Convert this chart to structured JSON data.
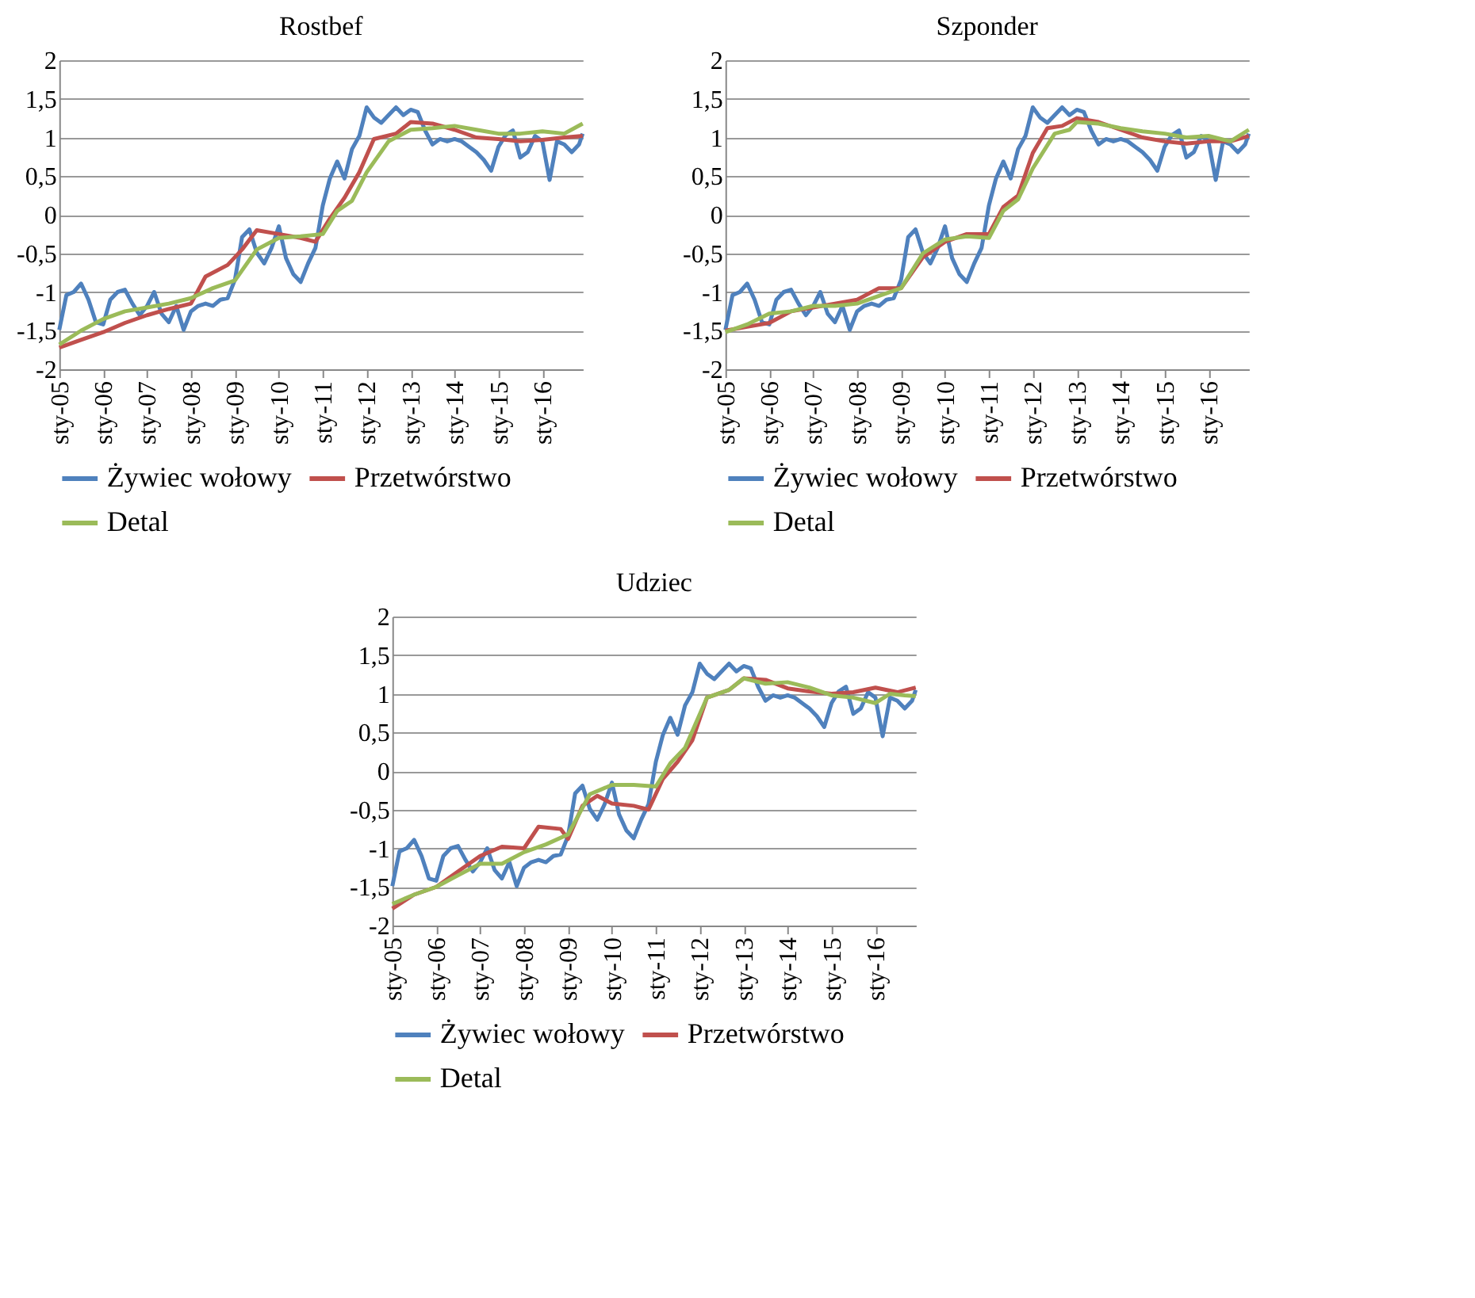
{
  "chart_data": [
    {
      "type": "line",
      "title": "Rostbef",
      "xlim": [
        "2005-01",
        "2016-12"
      ],
      "ylim": [
        -2,
        2
      ],
      "grid": "y",
      "legend": "bottom",
      "xticks": [
        {
          "value": "2005-01",
          "label": "sty-05"
        },
        {
          "value": "2006-01",
          "label": "sty-06"
        },
        {
          "value": "2007-01",
          "label": "sty-07"
        },
        {
          "value": "2008-01",
          "label": "sty-08"
        },
        {
          "value": "2009-01",
          "label": "sty-09"
        },
        {
          "value": "2010-01",
          "label": "sty-10"
        },
        {
          "value": "2011-01",
          "label": "sty-11"
        },
        {
          "value": "2012-01",
          "label": "sty-12"
        },
        {
          "value": "2013-01",
          "label": "sty-13"
        },
        {
          "value": "2014-01",
          "label": "sty-14"
        },
        {
          "value": "2015-01",
          "label": "sty-15"
        },
        {
          "value": "2016-01",
          "label": "sty-16"
        }
      ],
      "yticks": [
        -2,
        {
          "value": -1.5,
          "label": "-1,5"
        },
        -1,
        {
          "value": -0.5,
          "label": "-0,5"
        },
        0,
        {
          "value": 0.5,
          "label": "0,5"
        },
        1,
        {
          "value": 1.5,
          "label": "1,5"
        },
        2
      ],
      "series": [
        {
          "name": "Żywiec wołowy",
          "color": "#4f81bd",
          "x": [
            "2005-01",
            "2005-03",
            "2005-05",
            "2005-07",
            "2005-09",
            "2005-11",
            "2006-01",
            "2006-03",
            "2006-05",
            "2006-07",
            "2006-09",
            "2006-11",
            "2007-01",
            "2007-03",
            "2007-05",
            "2007-07",
            "2007-09",
            "2007-11",
            "2008-01",
            "2008-03",
            "2008-05",
            "2008-07",
            "2008-09",
            "2008-11",
            "2009-01",
            "2009-03",
            "2009-05",
            "2009-07",
            "2009-09",
            "2009-11",
            "2010-01",
            "2010-03",
            "2010-05",
            "2010-07",
            "2010-09",
            "2010-11",
            "2011-01",
            "2011-03",
            "2011-05",
            "2011-07",
            "2011-09",
            "2011-11",
            "2012-01",
            "2012-03",
            "2012-05",
            "2012-07",
            "2012-09",
            "2012-11",
            "2013-01",
            "2013-03",
            "2013-05",
            "2013-07",
            "2013-09",
            "2013-11",
            "2014-01",
            "2014-03",
            "2014-05",
            "2014-07",
            "2014-09",
            "2014-11",
            "2015-01",
            "2015-03",
            "2015-05",
            "2015-07",
            "2015-09",
            "2015-11",
            "2016-01",
            "2016-03",
            "2016-05",
            "2016-07",
            "2016-09",
            "2016-11",
            "2016-12"
          ],
          "values": [
            -1.49,
            -1.04,
            -1.0,
            -0.89,
            -1.1,
            -1.39,
            -1.42,
            -1.1,
            -1.0,
            -0.97,
            -1.15,
            -1.3,
            -1.18,
            -1.0,
            -1.28,
            -1.39,
            -1.18,
            -1.49,
            -1.25,
            -1.18,
            -1.15,
            -1.18,
            -1.1,
            -1.08,
            -0.84,
            -0.29,
            -0.19,
            -0.49,
            -0.63,
            -0.43,
            -0.15,
            -0.56,
            -0.77,
            -0.87,
            -0.63,
            -0.43,
            0.12,
            0.47,
            0.69,
            0.47,
            0.85,
            1.02,
            1.39,
            1.26,
            1.19,
            1.29,
            1.39,
            1.29,
            1.36,
            1.33,
            1.09,
            0.91,
            0.98,
            0.95,
            0.98,
            0.95,
            0.88,
            0.81,
            0.71,
            0.57,
            0.88,
            1.03,
            1.09,
            0.74,
            0.81,
            1.02,
            0.95,
            0.45,
            0.95,
            0.91,
            0.81,
            0.91,
            1.05
          ]
        },
        {
          "name": "Przetwórstwo",
          "color": "#c0504d",
          "x": [
            "2005-01",
            "2005-07",
            "2006-01",
            "2006-07",
            "2007-01",
            "2007-07",
            "2008-01",
            "2008-05",
            "2008-11",
            "2009-03",
            "2009-07",
            "2010-01",
            "2010-07",
            "2010-11",
            "2011-03",
            "2011-07",
            "2011-11",
            "2012-03",
            "2012-09",
            "2013-01",
            "2013-07",
            "2014-01",
            "2014-07",
            "2015-01",
            "2015-07",
            "2016-01",
            "2016-07",
            "2016-12"
          ],
          "values": [
            -1.72,
            -1.62,
            -1.52,
            -1.4,
            -1.3,
            -1.22,
            -1.15,
            -0.8,
            -0.65,
            -0.45,
            -0.2,
            -0.25,
            -0.3,
            -0.35,
            -0.05,
            0.22,
            0.55,
            0.98,
            1.05,
            1.2,
            1.18,
            1.1,
            1.0,
            0.98,
            0.95,
            0.97,
            1.0,
            1.02
          ]
        },
        {
          "name": "Detal",
          "color": "#9bbb59",
          "x": [
            "2005-01",
            "2005-07",
            "2006-01",
            "2006-07",
            "2007-01",
            "2007-07",
            "2008-01",
            "2008-07",
            "2009-01",
            "2009-07",
            "2010-01",
            "2010-07",
            "2011-01",
            "2011-05",
            "2011-09",
            "2012-01",
            "2012-07",
            "2013-01",
            "2013-07",
            "2014-01",
            "2014-07",
            "2015-01",
            "2015-07",
            "2016-01",
            "2016-07",
            "2016-12"
          ],
          "values": [
            -1.68,
            -1.5,
            -1.35,
            -1.25,
            -1.2,
            -1.15,
            -1.08,
            -0.95,
            -0.85,
            -0.45,
            -0.3,
            -0.28,
            -0.25,
            0.05,
            0.18,
            0.55,
            0.95,
            1.1,
            1.12,
            1.15,
            1.1,
            1.05,
            1.05,
            1.08,
            1.05,
            1.18
          ]
        }
      ]
    },
    {
      "type": "line",
      "title": "Szponder",
      "xlim": [
        "2005-01",
        "2016-12"
      ],
      "ylim": [
        -2,
        2
      ],
      "grid": "y",
      "legend": "bottom",
      "xticks": [
        {
          "value": "2005-01",
          "label": "sty-05"
        },
        {
          "value": "2006-01",
          "label": "sty-06"
        },
        {
          "value": "2007-01",
          "label": "sty-07"
        },
        {
          "value": "2008-01",
          "label": "sty-08"
        },
        {
          "value": "2009-01",
          "label": "sty-09"
        },
        {
          "value": "2010-01",
          "label": "sty-10"
        },
        {
          "value": "2011-01",
          "label": "sty-11"
        },
        {
          "value": "2012-01",
          "label": "sty-12"
        },
        {
          "value": "2013-01",
          "label": "sty-13"
        },
        {
          "value": "2014-01",
          "label": "sty-14"
        },
        {
          "value": "2015-01",
          "label": "sty-15"
        },
        {
          "value": "2016-01",
          "label": "sty-16"
        }
      ],
      "yticks": [
        -2,
        {
          "value": -1.5,
          "label": "-1,5"
        },
        -1,
        {
          "value": -0.5,
          "label": "-0,5"
        },
        0,
        {
          "value": 0.5,
          "label": "0,5"
        },
        1,
        {
          "value": 1.5,
          "label": "1,5"
        },
        2
      ],
      "series": [
        {
          "name": "Żywiec wołowy",
          "color": "#4f81bd",
          "x": [
            "2005-01",
            "2005-03",
            "2005-05",
            "2005-07",
            "2005-09",
            "2005-11",
            "2006-01",
            "2006-03",
            "2006-05",
            "2006-07",
            "2006-09",
            "2006-11",
            "2007-01",
            "2007-03",
            "2007-05",
            "2007-07",
            "2007-09",
            "2007-11",
            "2008-01",
            "2008-03",
            "2008-05",
            "2008-07",
            "2008-09",
            "2008-11",
            "2009-01",
            "2009-03",
            "2009-05",
            "2009-07",
            "2009-09",
            "2009-11",
            "2010-01",
            "2010-03",
            "2010-05",
            "2010-07",
            "2010-09",
            "2010-11",
            "2011-01",
            "2011-03",
            "2011-05",
            "2011-07",
            "2011-09",
            "2011-11",
            "2012-01",
            "2012-03",
            "2012-05",
            "2012-07",
            "2012-09",
            "2012-11",
            "2013-01",
            "2013-03",
            "2013-05",
            "2013-07",
            "2013-09",
            "2013-11",
            "2014-01",
            "2014-03",
            "2014-05",
            "2014-07",
            "2014-09",
            "2014-11",
            "2015-01",
            "2015-03",
            "2015-05",
            "2015-07",
            "2015-09",
            "2015-11",
            "2016-01",
            "2016-03",
            "2016-05",
            "2016-07",
            "2016-09",
            "2016-11",
            "2016-12"
          ],
          "values": [
            -1.49,
            -1.04,
            -1.0,
            -0.89,
            -1.1,
            -1.39,
            -1.42,
            -1.1,
            -1.0,
            -0.97,
            -1.15,
            -1.3,
            -1.18,
            -1.0,
            -1.28,
            -1.39,
            -1.18,
            -1.49,
            -1.25,
            -1.18,
            -1.15,
            -1.18,
            -1.1,
            -1.08,
            -0.84,
            -0.29,
            -0.19,
            -0.49,
            -0.63,
            -0.43,
            -0.15,
            -0.56,
            -0.77,
            -0.87,
            -0.63,
            -0.43,
            0.12,
            0.47,
            0.69,
            0.47,
            0.85,
            1.02,
            1.39,
            1.26,
            1.19,
            1.29,
            1.39,
            1.29,
            1.36,
            1.33,
            1.09,
            0.91,
            0.98,
            0.95,
            0.98,
            0.95,
            0.88,
            0.81,
            0.71,
            0.57,
            0.88,
            1.03,
            1.09,
            0.74,
            0.81,
            1.02,
            0.95,
            0.45,
            0.95,
            0.91,
            0.81,
            0.91,
            1.05
          ]
        },
        {
          "name": "Przetwórstwo",
          "color": "#c0504d",
          "x": [
            "2005-01",
            "2005-07",
            "2006-01",
            "2006-07",
            "2007-01",
            "2007-07",
            "2008-01",
            "2008-07",
            "2009-01",
            "2009-07",
            "2010-01",
            "2010-07",
            "2011-01",
            "2011-05",
            "2011-09",
            "2012-01",
            "2012-05",
            "2012-09",
            "2013-01",
            "2013-07",
            "2014-01",
            "2014-07",
            "2015-01",
            "2015-07",
            "2016-01",
            "2016-07",
            "2016-12"
          ],
          "values": [
            -1.5,
            -1.45,
            -1.4,
            -1.25,
            -1.2,
            -1.15,
            -1.1,
            -0.95,
            -0.95,
            -0.55,
            -0.35,
            -0.25,
            -0.25,
            0.1,
            0.25,
            0.8,
            1.12,
            1.15,
            1.25,
            1.2,
            1.1,
            1.0,
            0.95,
            0.92,
            0.95,
            0.95,
            1.02
          ]
        },
        {
          "name": "Detal",
          "color": "#9bbb59",
          "x": [
            "2005-01",
            "2005-07",
            "2006-01",
            "2006-07",
            "2007-01",
            "2007-07",
            "2008-01",
            "2008-07",
            "2009-01",
            "2009-07",
            "2010-01",
            "2010-07",
            "2011-01",
            "2011-05",
            "2011-09",
            "2012-01",
            "2012-07",
            "2012-11",
            "2013-01",
            "2013-07",
            "2014-01",
            "2014-07",
            "2015-01",
            "2015-07",
            "2016-01",
            "2016-07",
            "2016-12"
          ],
          "values": [
            -1.52,
            -1.42,
            -1.28,
            -1.25,
            -1.18,
            -1.18,
            -1.15,
            -1.05,
            -0.95,
            -0.5,
            -0.32,
            -0.28,
            -0.3,
            0.05,
            0.2,
            0.6,
            1.05,
            1.1,
            1.2,
            1.18,
            1.12,
            1.08,
            1.05,
            1.0,
            1.02,
            0.95,
            1.1
          ]
        }
      ]
    },
    {
      "type": "line",
      "title": "Udziec",
      "xlim": [
        "2005-01",
        "2016-12"
      ],
      "ylim": [
        -2,
        2
      ],
      "grid": "y",
      "legend": "bottom",
      "xticks": [
        {
          "value": "2005-01",
          "label": "sty-05"
        },
        {
          "value": "2006-01",
          "label": "sty-06"
        },
        {
          "value": "2007-01",
          "label": "sty-07"
        },
        {
          "value": "2008-01",
          "label": "sty-08"
        },
        {
          "value": "2009-01",
          "label": "sty-09"
        },
        {
          "value": "2010-01",
          "label": "sty-10"
        },
        {
          "value": "2011-01",
          "label": "sty-11"
        },
        {
          "value": "2012-01",
          "label": "sty-12"
        },
        {
          "value": "2013-01",
          "label": "sty-13"
        },
        {
          "value": "2014-01",
          "label": "sty-14"
        },
        {
          "value": "2015-01",
          "label": "sty-15"
        },
        {
          "value": "2016-01",
          "label": "sty-16"
        }
      ],
      "yticks": [
        -2,
        {
          "value": -1.5,
          "label": "-1,5"
        },
        -1,
        {
          "value": -0.5,
          "label": "-0,5"
        },
        0,
        {
          "value": 0.5,
          "label": "0,5"
        },
        1,
        {
          "value": 1.5,
          "label": "1,5"
        },
        2
      ],
      "series": [
        {
          "name": "Żywiec wołowy",
          "color": "#4f81bd",
          "x": [
            "2005-01",
            "2005-03",
            "2005-05",
            "2005-07",
            "2005-09",
            "2005-11",
            "2006-01",
            "2006-03",
            "2006-05",
            "2006-07",
            "2006-09",
            "2006-11",
            "2007-01",
            "2007-03",
            "2007-05",
            "2007-07",
            "2007-09",
            "2007-11",
            "2008-01",
            "2008-03",
            "2008-05",
            "2008-07",
            "2008-09",
            "2008-11",
            "2009-01",
            "2009-03",
            "2009-05",
            "2009-07",
            "2009-09",
            "2009-11",
            "2010-01",
            "2010-03",
            "2010-05",
            "2010-07",
            "2010-09",
            "2010-11",
            "2011-01",
            "2011-03",
            "2011-05",
            "2011-07",
            "2011-09",
            "2011-11",
            "2012-01",
            "2012-03",
            "2012-05",
            "2012-07",
            "2012-09",
            "2012-11",
            "2013-01",
            "2013-03",
            "2013-05",
            "2013-07",
            "2013-09",
            "2013-11",
            "2014-01",
            "2014-03",
            "2014-05",
            "2014-07",
            "2014-09",
            "2014-11",
            "2015-01",
            "2015-03",
            "2015-05",
            "2015-07",
            "2015-09",
            "2015-11",
            "2016-01",
            "2016-03",
            "2016-05",
            "2016-07",
            "2016-09",
            "2016-11",
            "2016-12"
          ],
          "values": [
            -1.49,
            -1.04,
            -1.0,
            -0.89,
            -1.1,
            -1.39,
            -1.42,
            -1.1,
            -1.0,
            -0.97,
            -1.15,
            -1.3,
            -1.18,
            -1.0,
            -1.28,
            -1.39,
            -1.18,
            -1.49,
            -1.25,
            -1.18,
            -1.15,
            -1.18,
            -1.1,
            -1.08,
            -0.84,
            -0.29,
            -0.19,
            -0.49,
            -0.63,
            -0.43,
            -0.15,
            -0.56,
            -0.77,
            -0.87,
            -0.63,
            -0.43,
            0.12,
            0.47,
            0.69,
            0.47,
            0.85,
            1.02,
            1.39,
            1.26,
            1.19,
            1.29,
            1.39,
            1.29,
            1.36,
            1.33,
            1.09,
            0.91,
            0.98,
            0.95,
            0.98,
            0.95,
            0.88,
            0.81,
            0.71,
            0.57,
            0.88,
            1.03,
            1.09,
            0.74,
            0.81,
            1.02,
            0.95,
            0.45,
            0.95,
            0.91,
            0.81,
            0.91,
            1.05
          ]
        },
        {
          "name": "Przetwórstwo",
          "color": "#c0504d",
          "x": [
            "2005-01",
            "2005-07",
            "2006-01",
            "2006-07",
            "2007-01",
            "2007-07",
            "2008-01",
            "2008-05",
            "2008-11",
            "2009-01",
            "2009-05",
            "2009-09",
            "2010-01",
            "2010-07",
            "2010-11",
            "2011-03",
            "2011-07",
            "2011-11",
            "2012-03",
            "2012-09",
            "2013-01",
            "2013-07",
            "2014-01",
            "2014-07",
            "2015-01",
            "2015-07",
            "2016-01",
            "2016-07",
            "2016-12"
          ],
          "values": [
            -1.78,
            -1.6,
            -1.5,
            -1.3,
            -1.1,
            -0.98,
            -1.0,
            -0.72,
            -0.75,
            -0.88,
            -0.45,
            -0.32,
            -0.42,
            -0.45,
            -0.5,
            -0.1,
            0.12,
            0.4,
            0.95,
            1.05,
            1.2,
            1.18,
            1.07,
            1.03,
            1.0,
            1.02,
            1.08,
            1.02,
            1.08
          ]
        },
        {
          "name": "Detal",
          "color": "#9bbb59",
          "x": [
            "2005-01",
            "2005-07",
            "2006-01",
            "2006-07",
            "2007-01",
            "2007-07",
            "2008-01",
            "2008-07",
            "2009-01",
            "2009-07",
            "2010-01",
            "2010-07",
            "2011-01",
            "2011-05",
            "2011-09",
            "2012-03",
            "2012-09",
            "2013-01",
            "2013-07",
            "2014-01",
            "2014-07",
            "2015-01",
            "2015-07",
            "2016-01",
            "2016-05",
            "2016-09",
            "2016-12"
          ],
          "values": [
            -1.72,
            -1.6,
            -1.5,
            -1.35,
            -1.2,
            -1.2,
            -1.05,
            -0.95,
            -0.82,
            -0.3,
            -0.18,
            -0.18,
            -0.2,
            0.1,
            0.3,
            0.95,
            1.05,
            1.2,
            1.13,
            1.15,
            1.08,
            0.98,
            0.95,
            0.88,
            1.0,
            0.98,
            0.97
          ]
        }
      ]
    }
  ]
}
